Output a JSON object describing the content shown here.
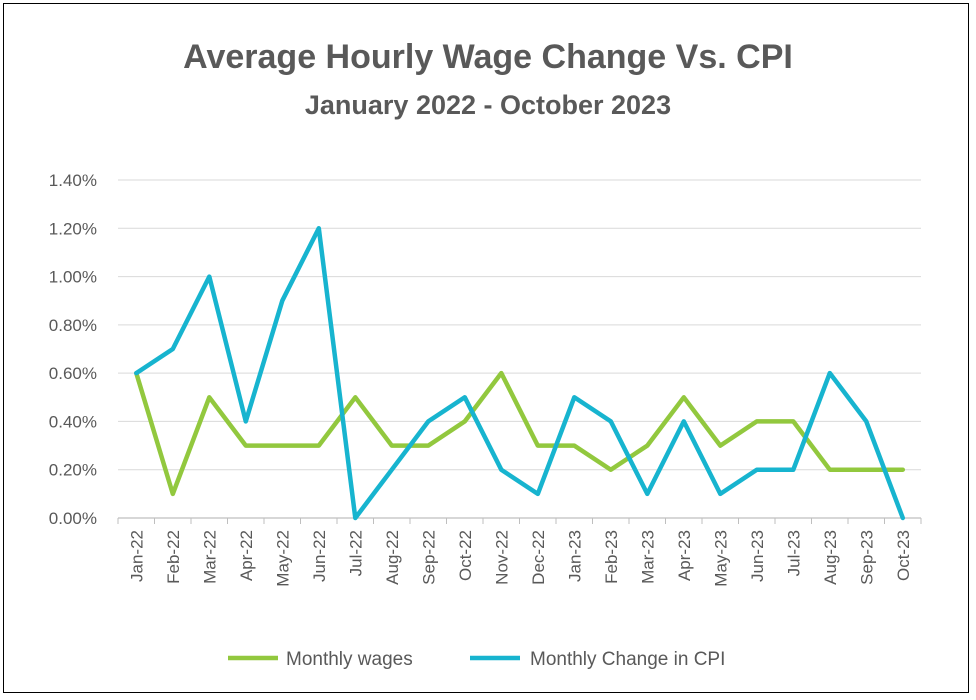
{
  "chart_data": {
    "type": "line",
    "title": "Average Hourly Wage Change Vs. CPI",
    "subtitle": "January 2022 - October 2023",
    "xlabel": "",
    "ylabel": "",
    "ylim": [
      0,
      1.4
    ],
    "y_tick_values": [
      0,
      0.2,
      0.4,
      0.6,
      0.8,
      1.0,
      1.2,
      1.4
    ],
    "y_tick_labels": [
      "0.00%",
      "0.20%",
      "0.40%",
      "0.60%",
      "0.80%",
      "1.00%",
      "1.20%",
      "1.40%"
    ],
    "grid": true,
    "legend_position": "bottom",
    "categories": [
      "Jan-22",
      "Feb-22",
      "Mar-22",
      "Apr-22",
      "May-22",
      "Jun-22",
      "Jul-22",
      "Aug-22",
      "Sep-22",
      "Oct-22",
      "Nov-22",
      "Dec-22",
      "Jan-23",
      "Feb-23",
      "Mar-23",
      "Apr-23",
      "May-23",
      "Jun-23",
      "Jul-23",
      "Aug-23",
      "Sep-23",
      "Oct-23"
    ],
    "series": [
      {
        "name": "Monthly wages",
        "color": "#92C83E",
        "values": [
          0.6,
          0.1,
          0.5,
          0.3,
          0.3,
          0.3,
          0.5,
          0.3,
          0.3,
          0.4,
          0.6,
          0.3,
          0.3,
          0.2,
          0.3,
          0.5,
          0.3,
          0.4,
          0.4,
          0.2,
          0.2,
          0.2
        ]
      },
      {
        "name": "Monthly Change in CPI",
        "color": "#17B4CF",
        "values": [
          0.6,
          0.7,
          1.0,
          0.4,
          0.9,
          1.2,
          0.0,
          0.2,
          0.4,
          0.5,
          0.2,
          0.1,
          0.5,
          0.4,
          0.1,
          0.4,
          0.1,
          0.2,
          0.2,
          0.6,
          0.4,
          0.0
        ]
      }
    ]
  }
}
